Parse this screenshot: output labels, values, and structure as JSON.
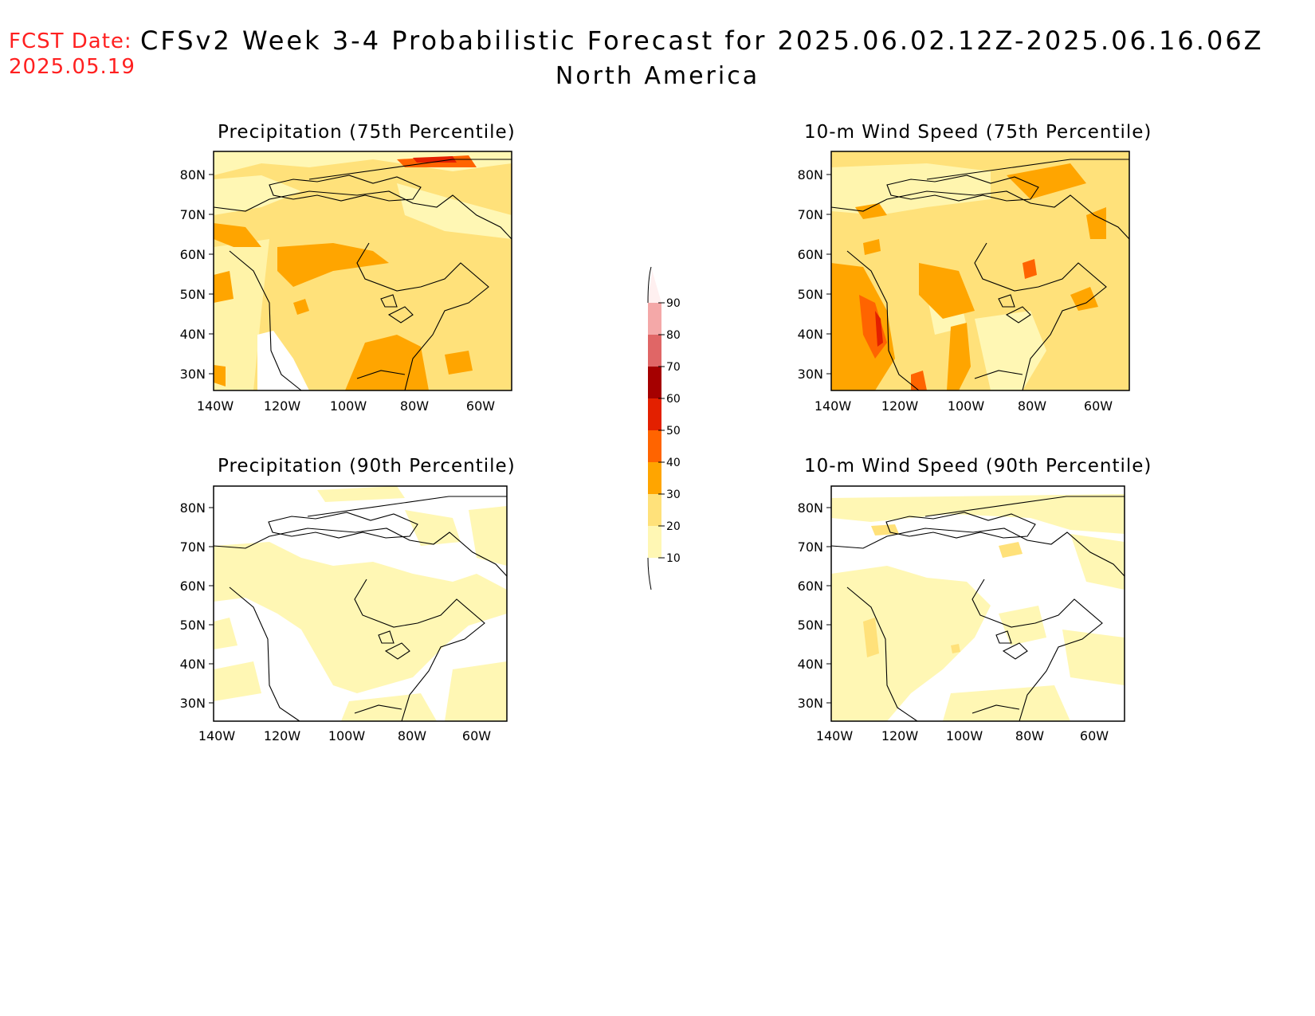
{
  "header": {
    "fcst_label": "FCST Date:",
    "fcst_date": "2025.05.19",
    "title": "CFSv2 Week 3-4 Probabilistic Forecast for 2025.06.02.12Z-2025.06.16.06Z",
    "subtitle": "North America"
  },
  "panels": [
    {
      "title": "Precipitation (75th Percentile)"
    },
    {
      "title": "10-m Wind Speed (75th Percentile)"
    },
    {
      "title": "Precipitation (90th Percentile)"
    },
    {
      "title": "10-m Wind Speed (90th Percentile)"
    }
  ],
  "axes": {
    "lat_labels": [
      "80N",
      "70N",
      "60N",
      "50N",
      "40N",
      "30N"
    ],
    "lon_labels": [
      "140W",
      "120W",
      "100W",
      "80W",
      "60W"
    ]
  },
  "colorbar": {
    "levels": [
      "90",
      "80",
      "70",
      "60",
      "50",
      "40",
      "30",
      "20",
      "10"
    ],
    "colors": [
      "#fff0f0",
      "#f4a8a8",
      "#e06666",
      "#a50000",
      "#e32000",
      "#ff6400",
      "#ffa500",
      "#ffe17a",
      "#fff7b4"
    ]
  },
  "colors": {
    "fcst": "#ff2020",
    "land_light": "#fff7b4",
    "land_mid": "#ffe17a",
    "orange": "#ffa500",
    "dark_orange": "#ff6400",
    "red": "#e32000"
  }
}
